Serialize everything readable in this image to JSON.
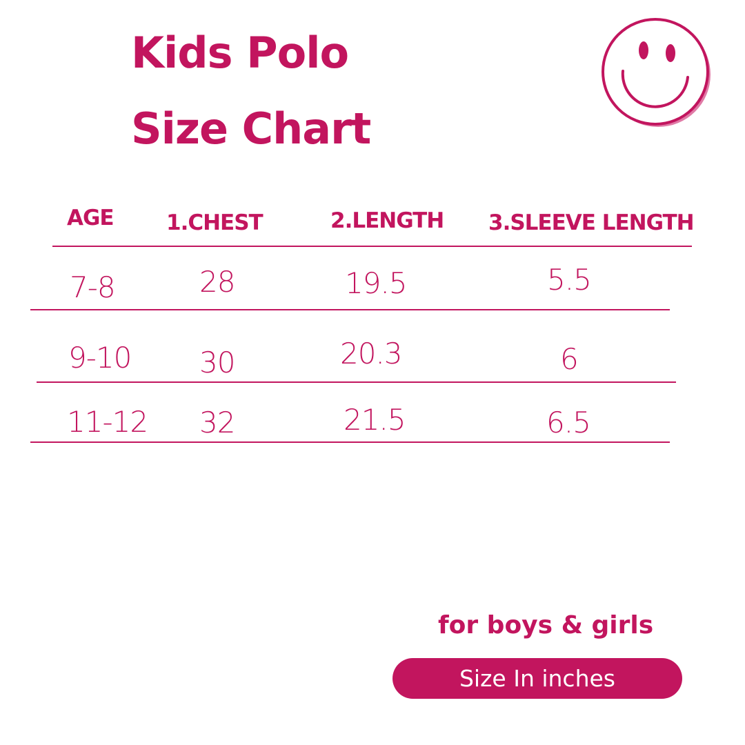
{
  "title": {
    "line1": "Kids Polo",
    "line2": "Size Chart"
  },
  "icon": "smiley-face-icon",
  "accent_color": "#c2155e",
  "table": {
    "headers": [
      "AGE",
      "1.CHEST",
      "2.LENGTH",
      "3.SLEEVE LENGTH"
    ],
    "rows": [
      [
        "7-8",
        "28",
        "19.5",
        "5.5"
      ],
      [
        "9-10",
        "30",
        "20.3",
        "6"
      ],
      [
        "11-12",
        "32",
        "21.5",
        "6.5"
      ]
    ]
  },
  "footer": {
    "tagline": "for boys & girls",
    "unit_label": "Size In inches"
  }
}
